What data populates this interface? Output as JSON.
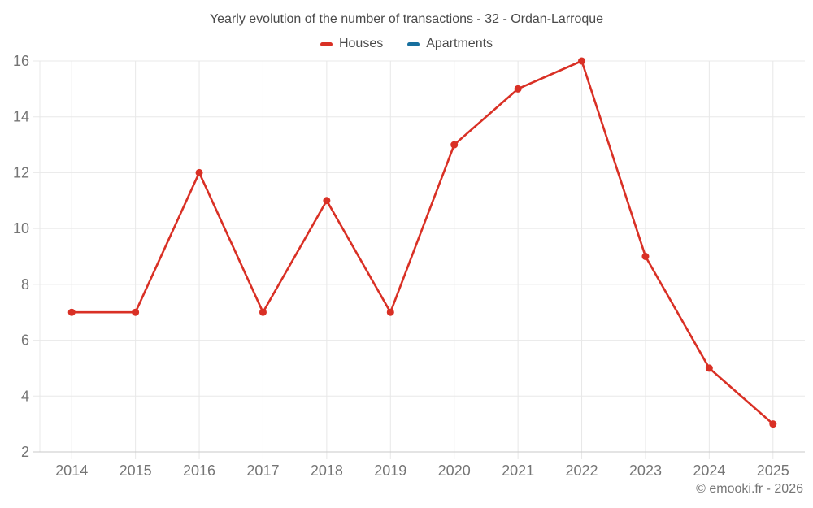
{
  "chart": {
    "title": "Yearly evolution of the number of transactions - 32 - Ordan-Larroque",
    "copyright": "© emooki.fr - 2026"
  },
  "chart_data": {
    "type": "line",
    "title": "Yearly evolution of the number of transactions - 32 - Ordan-Larroque",
    "categories": [
      "2014",
      "2015",
      "2016",
      "2017",
      "2018",
      "2019",
      "2020",
      "2021",
      "2022",
      "2023",
      "2024",
      "2025"
    ],
    "series": [
      {
        "name": "Houses",
        "color": "#d93025",
        "values": [
          7,
          7,
          12,
          7,
          11,
          7,
          13,
          15,
          16,
          9,
          5,
          3
        ]
      },
      {
        "name": "Apartments",
        "color": "#176f9e",
        "values": []
      }
    ],
    "xlabel": "",
    "ylabel": "",
    "ylim": [
      2,
      16
    ],
    "yticks": [
      2,
      4,
      6,
      8,
      10,
      12,
      14,
      16
    ],
    "grid": true,
    "legend_position": "top",
    "grid_color": "#e8e8e8",
    "baseline_color": "#c9c9c9",
    "annotations": [
      "© emooki.fr - 2026"
    ]
  }
}
